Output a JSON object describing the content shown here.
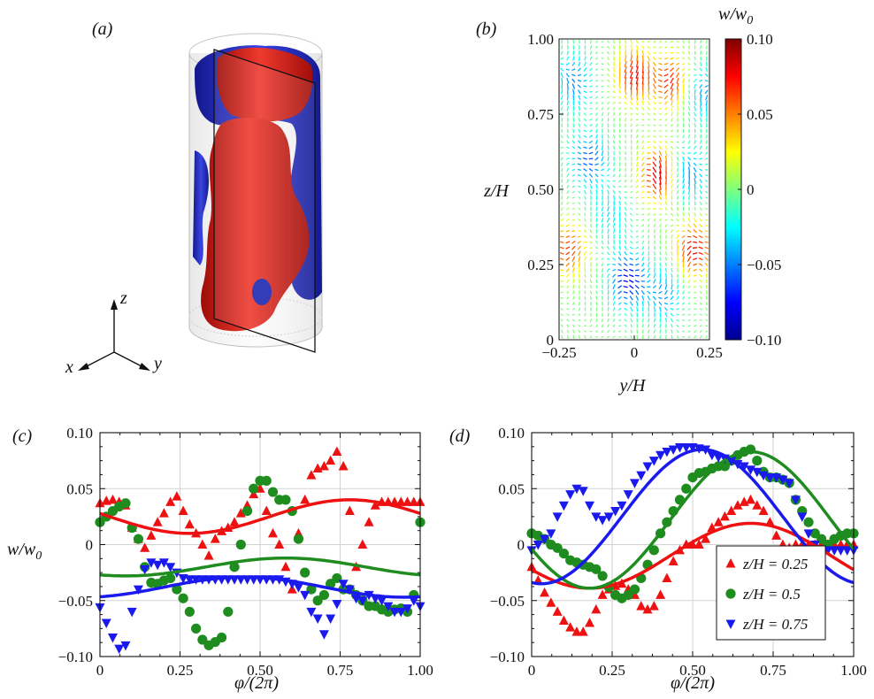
{
  "panels": {
    "a": "(a)",
    "b": "(b)",
    "c": "(c)",
    "d": "(d)"
  },
  "axes3d": {
    "x": "x",
    "y": "y",
    "z": "z"
  },
  "colors": {
    "red": "#ee1111",
    "green": "#1e8c1e",
    "blue": "#1a1aee",
    "cyl_red": "#e0251d",
    "cyl_blue": "#2b35d6"
  },
  "chart_data": [
    {
      "id": "b",
      "type": "heatmap",
      "xlabel": "y/H",
      "ylabel": "z/H",
      "xlim": [
        -0.25,
        0.25
      ],
      "ylim": [
        0,
        1
      ],
      "xticks": [
        "−0.25",
        "0",
        "0.25"
      ],
      "yticks": [
        "0",
        "0.25",
        "0.50",
        "0.75",
        "1.00"
      ],
      "colorbar": {
        "label": "w/w0",
        "range": [
          -0.1,
          0.1
        ],
        "ticks": [
          "0.10",
          "0.05",
          "0",
          "−0.05",
          "−0.10"
        ]
      },
      "blobs": [
        {
          "y": 0.0,
          "z": 0.88,
          "w": 0.075
        },
        {
          "y": 0.12,
          "z": 0.86,
          "w": 0.07
        },
        {
          "y": 0.08,
          "z": 0.55,
          "w": 0.085
        },
        {
          "y": 0.2,
          "z": 0.3,
          "w": 0.08
        },
        {
          "y": -0.22,
          "z": 0.3,
          "w": 0.065
        },
        {
          "y": -0.2,
          "z": 0.86,
          "w": -0.05
        },
        {
          "y": -0.15,
          "z": 0.6,
          "w": -0.06
        },
        {
          "y": 0.18,
          "z": 0.55,
          "w": -0.05
        },
        {
          "y": 0.23,
          "z": 0.82,
          "w": -0.045
        },
        {
          "y": -0.02,
          "z": 0.2,
          "w": -0.08
        },
        {
          "y": 0.1,
          "z": 0.15,
          "w": -0.045
        },
        {
          "y": -0.08,
          "z": 0.42,
          "w": -0.03
        }
      ]
    },
    {
      "id": "c",
      "type": "scatter",
      "xlabel": "φ/(2π)",
      "ylabel": "w/w0",
      "xlim": [
        0,
        1
      ],
      "ylim": [
        -0.1,
        0.1
      ],
      "xticks": [
        "0",
        "0.25",
        "0.50",
        "0.75",
        "1.00"
      ],
      "yticks": [
        "0.10",
        "0.05",
        "0",
        "−0.05",
        "−0.10"
      ],
      "series": [
        {
          "marker": "triangle-up",
          "color": "#ee1111",
          "x": [
            0,
            0.02,
            0.04,
            0.06,
            0.08,
            0.1,
            0.12,
            0.14,
            0.16,
            0.18,
            0.2,
            0.22,
            0.24,
            0.26,
            0.28,
            0.3,
            0.32,
            0.34,
            0.36,
            0.38,
            0.4,
            0.42,
            0.44,
            0.46,
            0.48,
            0.5,
            0.52,
            0.54,
            0.56,
            0.58,
            0.6,
            0.62,
            0.64,
            0.66,
            0.68,
            0.7,
            0.72,
            0.74,
            0.76,
            0.78,
            0.8,
            0.82,
            0.84,
            0.86,
            0.88,
            0.9,
            0.92,
            0.94,
            0.96,
            0.98,
            1.0
          ],
          "y": [
            0.037,
            0.039,
            0.04,
            0.038,
            0.035,
            0.015,
            0.005,
            -0.003,
            0.008,
            0.02,
            0.028,
            0.038,
            0.043,
            0.03,
            0.018,
            0.01,
            0.0,
            -0.01,
            0.005,
            0.012,
            0.015,
            0.02,
            0.028,
            0.035,
            0.045,
            0.05,
            0.03,
            0.01,
            0.0,
            -0.02,
            -0.04,
            0.01,
            0.04,
            0.062,
            0.068,
            0.07,
            0.075,
            0.083,
            0.07,
            0.03,
            -0.02,
            0.0,
            0.02,
            0.035,
            0.038,
            0.038,
            0.038,
            0.038,
            0.038,
            0.038,
            0.038
          ]
        },
        {
          "marker": "circle",
          "color": "#1e8c1e",
          "x": [
            0,
            0.02,
            0.04,
            0.06,
            0.08,
            0.1,
            0.12,
            0.14,
            0.16,
            0.18,
            0.2,
            0.22,
            0.24,
            0.26,
            0.28,
            0.3,
            0.32,
            0.34,
            0.36,
            0.38,
            0.4,
            0.42,
            0.44,
            0.46,
            0.48,
            0.5,
            0.52,
            0.54,
            0.56,
            0.58,
            0.6,
            0.62,
            0.64,
            0.66,
            0.68,
            0.7,
            0.72,
            0.74,
            0.76,
            0.78,
            0.8,
            0.82,
            0.84,
            0.86,
            0.88,
            0.9,
            0.92,
            0.94,
            0.96,
            0.98,
            1.0
          ],
          "y": [
            0.02,
            0.025,
            0.03,
            0.034,
            0.037,
            0.015,
            0.005,
            -0.02,
            -0.034,
            -0.035,
            -0.032,
            -0.03,
            -0.04,
            -0.048,
            -0.06,
            -0.075,
            -0.085,
            -0.09,
            -0.087,
            -0.083,
            -0.06,
            -0.02,
            0.0,
            0.03,
            0.05,
            0.057,
            0.057,
            0.047,
            0.04,
            0.04,
            0.03,
            0.005,
            -0.025,
            -0.04,
            -0.05,
            -0.045,
            -0.035,
            -0.03,
            -0.04,
            -0.04,
            -0.045,
            -0.05,
            -0.055,
            -0.055,
            -0.058,
            -0.06,
            -0.058,
            -0.057,
            -0.06,
            -0.045,
            0.02
          ]
        },
        {
          "marker": "triangle-down",
          "color": "#1a1aee",
          "x": [
            0,
            0.02,
            0.04,
            0.06,
            0.08,
            0.1,
            0.12,
            0.14,
            0.16,
            0.18,
            0.2,
            0.22,
            0.24,
            0.26,
            0.28,
            0.3,
            0.32,
            0.34,
            0.36,
            0.38,
            0.4,
            0.42,
            0.44,
            0.46,
            0.48,
            0.5,
            0.52,
            0.54,
            0.56,
            0.58,
            0.6,
            0.62,
            0.64,
            0.66,
            0.68,
            0.7,
            0.72,
            0.74,
            0.76,
            0.78,
            0.8,
            0.82,
            0.84,
            0.86,
            0.88,
            0.9,
            0.92,
            0.94,
            0.96,
            0.98,
            1.0
          ],
          "y": [
            -0.056,
            -0.07,
            -0.083,
            -0.093,
            -0.09,
            -0.06,
            -0.04,
            -0.022,
            -0.016,
            -0.018,
            -0.016,
            -0.02,
            -0.025,
            -0.03,
            -0.031,
            -0.031,
            -0.031,
            -0.031,
            -0.031,
            -0.031,
            -0.031,
            -0.031,
            -0.031,
            -0.031,
            -0.031,
            -0.031,
            -0.031,
            -0.031,
            -0.031,
            -0.033,
            -0.035,
            -0.038,
            -0.045,
            -0.06,
            -0.066,
            -0.08,
            -0.066,
            -0.053,
            -0.035,
            -0.04,
            -0.048,
            -0.05,
            -0.045,
            -0.048,
            -0.05,
            -0.055,
            -0.06,
            -0.06,
            -0.057,
            -0.05,
            -0.055
          ]
        }
      ],
      "fits": [
        {
          "color": "#ee1111",
          "mean": 0.025,
          "amp": 0.015,
          "phase": 0.78
        },
        {
          "color": "#1e8c1e",
          "mean": -0.02,
          "amp": 0.008,
          "phase": 0.58
        },
        {
          "color": "#1a1aee",
          "mean": -0.038,
          "amp": 0.009,
          "phase": 0.45
        }
      ]
    },
    {
      "id": "d",
      "type": "scatter",
      "xlabel": "φ/(2π)",
      "ylabel": "",
      "xlim": [
        0,
        1
      ],
      "ylim": [
        -0.1,
        0.1
      ],
      "xticks": [
        "0",
        "0.25",
        "0.50",
        "0.75",
        "1.00"
      ],
      "yticks": [
        "0.10",
        "0.05",
        "0",
        "−0.05",
        "−0.10"
      ],
      "legend": "bottom-right",
      "series": [
        {
          "name": "z/H = 0.25",
          "marker": "triangle-up",
          "color": "#ee1111",
          "x": [
            0,
            0.02,
            0.04,
            0.06,
            0.08,
            0.1,
            0.12,
            0.14,
            0.16,
            0.18,
            0.2,
            0.22,
            0.24,
            0.26,
            0.28,
            0.3,
            0.32,
            0.34,
            0.36,
            0.38,
            0.4,
            0.42,
            0.44,
            0.46,
            0.48,
            0.5,
            0.52,
            0.54,
            0.56,
            0.58,
            0.6,
            0.62,
            0.64,
            0.66,
            0.68,
            0.7,
            0.72,
            0.74,
            0.76,
            0.78,
            0.8,
            0.82,
            0.84,
            0.86,
            0.88,
            0.9,
            0.92,
            0.94,
            0.96,
            0.98,
            1.0
          ],
          "y": [
            -0.02,
            -0.032,
            -0.043,
            -0.052,
            -0.06,
            -0.068,
            -0.074,
            -0.078,
            -0.078,
            -0.07,
            -0.058,
            -0.045,
            -0.04,
            -0.037,
            -0.035,
            -0.04,
            -0.045,
            -0.055,
            -0.058,
            -0.055,
            -0.045,
            -0.03,
            -0.015,
            -0.005,
            0.0,
            0.0,
            0.0,
            0.005,
            0.015,
            0.02,
            0.025,
            0.03,
            0.035,
            0.038,
            0.04,
            0.035,
            0.03,
            0.02,
            0.008,
            0.0,
            -0.003,
            0.0,
            0.0,
            0.0,
            0.0,
            0.0,
            0.0,
            0.0,
            0.0,
            0.0,
            0.0
          ]
        },
        {
          "name": "z/H = 0.5",
          "marker": "circle",
          "color": "#1e8c1e",
          "x": [
            0,
            0.02,
            0.04,
            0.06,
            0.08,
            0.1,
            0.12,
            0.14,
            0.16,
            0.18,
            0.2,
            0.22,
            0.24,
            0.26,
            0.28,
            0.3,
            0.32,
            0.34,
            0.36,
            0.38,
            0.4,
            0.42,
            0.44,
            0.46,
            0.48,
            0.5,
            0.52,
            0.54,
            0.56,
            0.58,
            0.6,
            0.62,
            0.64,
            0.66,
            0.68,
            0.7,
            0.72,
            0.74,
            0.76,
            0.78,
            0.8,
            0.82,
            0.84,
            0.86,
            0.88,
            0.9,
            0.92,
            0.94,
            0.96,
            0.98,
            1.0
          ],
          "y": [
            0.01,
            0.008,
            0.005,
            0.0,
            -0.003,
            -0.008,
            -0.014,
            -0.016,
            -0.018,
            -0.02,
            -0.022,
            -0.028,
            -0.038,
            -0.045,
            -0.048,
            -0.045,
            -0.04,
            -0.03,
            -0.018,
            -0.005,
            0.01,
            0.02,
            0.03,
            0.04,
            0.05,
            0.06,
            0.064,
            0.065,
            0.068,
            0.07,
            0.07,
            0.075,
            0.08,
            0.083,
            0.085,
            0.075,
            0.065,
            0.06,
            0.06,
            0.058,
            0.055,
            0.04,
            0.03,
            0.02,
            0.01,
            0.005,
            0.0,
            0.005,
            0.008,
            0.01,
            0.01
          ]
        },
        {
          "name": "z/H = 0.75",
          "marker": "triangle-down",
          "color": "#1a1aee",
          "x": [
            0,
            0.02,
            0.04,
            0.06,
            0.08,
            0.1,
            0.12,
            0.14,
            0.16,
            0.18,
            0.2,
            0.22,
            0.24,
            0.26,
            0.28,
            0.3,
            0.32,
            0.34,
            0.36,
            0.38,
            0.4,
            0.42,
            0.44,
            0.46,
            0.48,
            0.5,
            0.52,
            0.54,
            0.56,
            0.58,
            0.6,
            0.62,
            0.64,
            0.66,
            0.68,
            0.7,
            0.72,
            0.74,
            0.76,
            0.78,
            0.8,
            0.82,
            0.84,
            0.86,
            0.88,
            0.9,
            0.92,
            0.94,
            0.96,
            0.98,
            1.0
          ],
          "y": [
            -0.005,
            0.0,
            0.005,
            0.01,
            0.025,
            0.035,
            0.045,
            0.05,
            0.048,
            0.035,
            0.025,
            0.022,
            0.025,
            0.03,
            0.035,
            0.045,
            0.055,
            0.062,
            0.07,
            0.075,
            0.08,
            0.083,
            0.085,
            0.087,
            0.087,
            0.087,
            0.086,
            0.085,
            0.08,
            0.078,
            0.077,
            0.075,
            0.072,
            0.07,
            0.067,
            0.065,
            0.062,
            0.06,
            0.06,
            0.058,
            0.055,
            0.04,
            0.025,
            0.01,
            0.0,
            -0.005,
            -0.005,
            -0.005,
            -0.005,
            -0.005,
            -0.005
          ]
        }
      ],
      "fits": [
        {
          "color": "#ee1111",
          "mean": -0.01,
          "amp": 0.029,
          "phase": 0.68
        },
        {
          "color": "#1e8c1e",
          "mean": 0.022,
          "amp": 0.061,
          "phase": 0.68
        },
        {
          "color": "#1a1aee",
          "mean": 0.025,
          "amp": 0.06,
          "phase": 0.53
        }
      ]
    }
  ]
}
